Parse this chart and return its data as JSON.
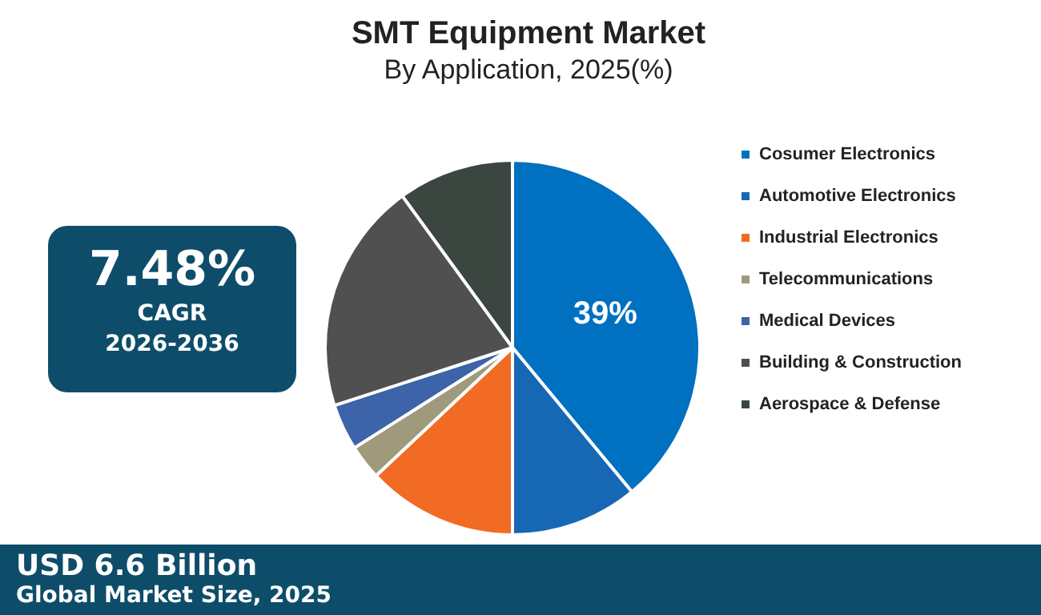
{
  "chart_data": {
    "type": "pie",
    "title": "SMT Equipment Market",
    "subtitle": "By Application, 2025(%)",
    "categories": [
      "Cosumer Electronics",
      "Automotive Electronics",
      "Industrial Electronics",
      "Telecommunications",
      "Medical Devices",
      "Building & Construction",
      "Aerospace & Defense"
    ],
    "values": [
      39,
      11,
      13,
      3,
      4,
      20,
      10
    ],
    "colors": [
      "#0070c0",
      "#1668b4",
      "#f26b24",
      "#a09a7c",
      "#3d63a8",
      "#505050",
      "#3a463f"
    ],
    "value_labels": [
      "39%",
      null,
      null,
      null,
      null,
      null,
      null
    ],
    "legend": "right",
    "annotations": [
      "7.48%",
      "CAGR",
      "2026-2036",
      "USD 6.6 Billion",
      "Global Market Size, 2025"
    ]
  }
}
